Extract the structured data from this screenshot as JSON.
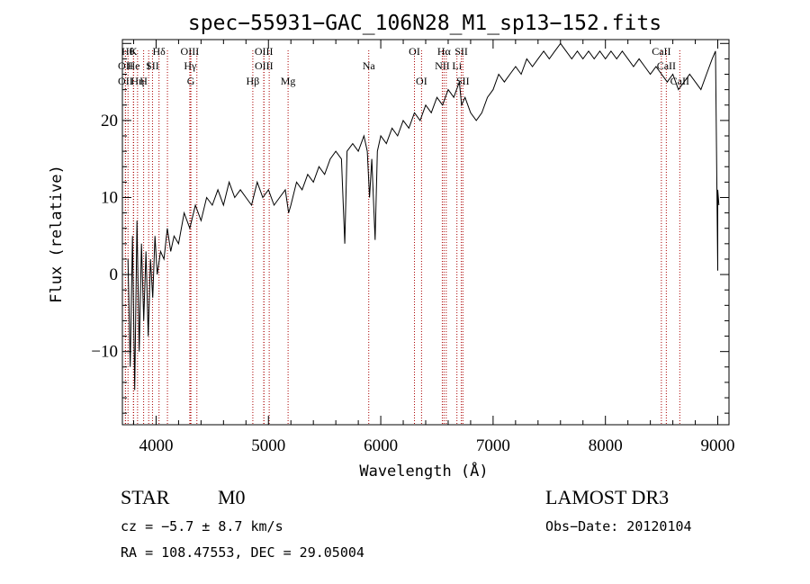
{
  "chart_data": {
    "type": "line",
    "title": "spec−55931−GAC_106N28_M1_sp13−152.fits",
    "xlabel": "Wavelength (Å)",
    "ylabel": "Flux (relative)",
    "xlim": [
      3700,
      9100
    ],
    "ylim": [
      -19.5,
      30.5
    ],
    "x_ticks": [
      4000,
      5000,
      6000,
      7000,
      8000,
      9000
    ],
    "x_tick_labels": [
      "4000",
      "5000",
      "6000",
      "7000",
      "8000",
      "9000"
    ],
    "y_ticks": [
      -10,
      0,
      10,
      20
    ],
    "y_tick_labels": [
      "−10",
      "0",
      "10",
      "20"
    ],
    "series": [
      {
        "name": "flux",
        "points": [
          [
            3750,
            2
          ],
          [
            3770,
            -12
          ],
          [
            3790,
            5
          ],
          [
            3810,
            -15
          ],
          [
            3830,
            7
          ],
          [
            3850,
            -10
          ],
          [
            3870,
            4
          ],
          [
            3890,
            -6
          ],
          [
            3910,
            3
          ],
          [
            3930,
            -8
          ],
          [
            3950,
            2
          ],
          [
            3970,
            -3
          ],
          [
            3990,
            5
          ],
          [
            4010,
            0
          ],
          [
            4040,
            3
          ],
          [
            4070,
            2
          ],
          [
            4100,
            6
          ],
          [
            4130,
            3
          ],
          [
            4160,
            5
          ],
          [
            4200,
            4
          ],
          [
            4250,
            8
          ],
          [
            4300,
            6
          ],
          [
            4350,
            9
          ],
          [
            4400,
            7
          ],
          [
            4450,
            10
          ],
          [
            4500,
            9
          ],
          [
            4550,
            11
          ],
          [
            4600,
            9
          ],
          [
            4650,
            12
          ],
          [
            4700,
            10
          ],
          [
            4750,
            11
          ],
          [
            4800,
            10
          ],
          [
            4850,
            9
          ],
          [
            4900,
            12
          ],
          [
            4950,
            10
          ],
          [
            5000,
            11
          ],
          [
            5050,
            9
          ],
          [
            5100,
            10
          ],
          [
            5150,
            11
          ],
          [
            5180,
            8
          ],
          [
            5200,
            9
          ],
          [
            5250,
            12
          ],
          [
            5300,
            11
          ],
          [
            5350,
            13
          ],
          [
            5400,
            12
          ],
          [
            5450,
            14
          ],
          [
            5500,
            13
          ],
          [
            5550,
            15
          ],
          [
            5600,
            16
          ],
          [
            5650,
            15
          ],
          [
            5680,
            4
          ],
          [
            5700,
            16
          ],
          [
            5750,
            17
          ],
          [
            5800,
            16
          ],
          [
            5850,
            18
          ],
          [
            5880,
            16
          ],
          [
            5900,
            10
          ],
          [
            5920,
            15
          ],
          [
            5950,
            4.5
          ],
          [
            5970,
            16
          ],
          [
            6000,
            18
          ],
          [
            6050,
            17
          ],
          [
            6100,
            19
          ],
          [
            6150,
            18
          ],
          [
            6200,
            20
          ],
          [
            6250,
            19
          ],
          [
            6300,
            21
          ],
          [
            6350,
            20
          ],
          [
            6400,
            22
          ],
          [
            6450,
            21
          ],
          [
            6500,
            23
          ],
          [
            6550,
            22
          ],
          [
            6600,
            24
          ],
          [
            6650,
            23
          ],
          [
            6700,
            25
          ],
          [
            6720,
            22
          ],
          [
            6750,
            23
          ],
          [
            6800,
            21
          ],
          [
            6850,
            20
          ],
          [
            6900,
            21
          ],
          [
            6950,
            23
          ],
          [
            7000,
            24
          ],
          [
            7050,
            26
          ],
          [
            7100,
            25
          ],
          [
            7150,
            26
          ],
          [
            7200,
            27
          ],
          [
            7250,
            26
          ],
          [
            7300,
            28
          ],
          [
            7350,
            27
          ],
          [
            7400,
            28
          ],
          [
            7450,
            29
          ],
          [
            7500,
            28
          ],
          [
            7550,
            29
          ],
          [
            7600,
            30
          ],
          [
            7650,
            29
          ],
          [
            7700,
            28
          ],
          [
            7750,
            29
          ],
          [
            7800,
            28
          ],
          [
            7850,
            29
          ],
          [
            7900,
            28
          ],
          [
            7950,
            29
          ],
          [
            8000,
            28
          ],
          [
            8050,
            29
          ],
          [
            8100,
            28
          ],
          [
            8150,
            29
          ],
          [
            8200,
            28
          ],
          [
            8250,
            27
          ],
          [
            8300,
            28
          ],
          [
            8350,
            27
          ],
          [
            8400,
            26
          ],
          [
            8450,
            27
          ],
          [
            8500,
            26
          ],
          [
            8550,
            25
          ],
          [
            8600,
            26
          ],
          [
            8650,
            24
          ],
          [
            8700,
            25
          ],
          [
            8750,
            26
          ],
          [
            8800,
            25
          ],
          [
            8850,
            24
          ],
          [
            8900,
            26
          ],
          [
            8950,
            28
          ],
          [
            8980,
            29
          ],
          [
            9000,
            0.5
          ],
          [
            9000,
            11
          ],
          [
            9010,
            9
          ]
        ]
      }
    ],
    "emission_lines": [
      {
        "x": 3750,
        "label": "Hθ",
        "row": 0
      },
      {
        "x": 3727,
        "label": "OII",
        "row": 1
      },
      {
        "x": 3727,
        "label": "OII",
        "row": 2
      },
      {
        "x": 3798,
        "label": "K",
        "row": 0
      },
      {
        "x": 3800,
        "label": "He",
        "row": 1
      },
      {
        "x": 3835,
        "label": "Hη",
        "row": 2
      },
      {
        "x": 3889,
        "label": "H",
        "row": 2
      },
      {
        "x": 3934,
        "label": "I",
        "row": 1
      },
      {
        "x": 3968,
        "label": "SII",
        "row": 1
      },
      {
        "x": 4026,
        "label": "Hδ",
        "row": 0
      },
      {
        "x": 4101,
        "label": "",
        "row": 0
      },
      {
        "x": 4300,
        "label": "OIII",
        "row": 0
      },
      {
        "x": 4304,
        "label": "Hγ",
        "row": 1
      },
      {
        "x": 4310,
        "label": "G",
        "row": 2
      },
      {
        "x": 4363,
        "label": "",
        "row": 0
      },
      {
        "x": 4861,
        "label": "Hβ",
        "row": 2
      },
      {
        "x": 4959,
        "label": "OIII",
        "row": 0
      },
      {
        "x": 4960,
        "label": "OIII",
        "row": 1
      },
      {
        "x": 5007,
        "label": "",
        "row": 0
      },
      {
        "x": 5175,
        "label": "Mg",
        "row": 2
      },
      {
        "x": 5893,
        "label": "Na",
        "row": 1
      },
      {
        "x": 6300,
        "label": "OI",
        "row": 0
      },
      {
        "x": 6363,
        "label": "OI",
        "row": 2
      },
      {
        "x": 6548,
        "label": "NII",
        "row": 1
      },
      {
        "x": 6563,
        "label": "Hα",
        "row": 0
      },
      {
        "x": 6583,
        "label": "",
        "row": 0
      },
      {
        "x": 6678,
        "label": "Li",
        "row": 1
      },
      {
        "x": 6717,
        "label": "SII",
        "row": 0
      },
      {
        "x": 6731,
        "label": "SII",
        "row": 2
      },
      {
        "x": 8498,
        "label": "CaII",
        "row": 0
      },
      {
        "x": 8542,
        "label": "CaII",
        "row": 1
      },
      {
        "x": 8662,
        "label": "CaII",
        "row": 2
      }
    ]
  },
  "info": {
    "object_class": "STAR",
    "subclass": "M0",
    "cz": "cz = −5.7 ± 8.7 km/s",
    "radec": "RA = 108.47553, DEC =  29.05004",
    "survey": "LAMOST DR3",
    "obs_date": "Obs−Date: 20120104"
  },
  "colors": {
    "line_marker": "#aa0000",
    "spectrum": "#000000"
  }
}
